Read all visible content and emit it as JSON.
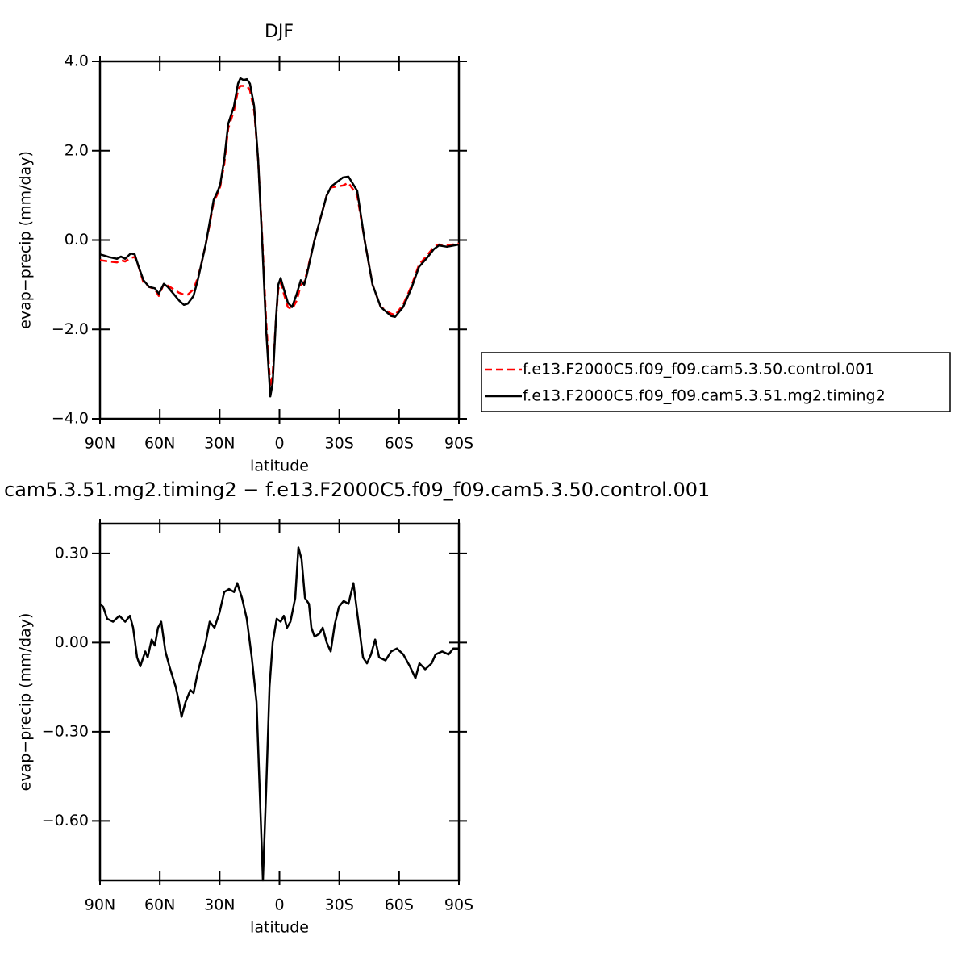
{
  "chart_data": [
    {
      "type": "line",
      "title": "DJF",
      "xlabel": "latitude",
      "ylabel": "evap−precip (mm/day)",
      "xlim": [
        90,
        -90
      ],
      "xticks": [
        {
          "value": 90,
          "label": "90N"
        },
        {
          "value": 60,
          "label": "60N"
        },
        {
          "value": 30,
          "label": "30N"
        },
        0,
        {
          "value": -30,
          "label": "30S"
        },
        {
          "value": -60,
          "label": "60S"
        },
        {
          "value": -90,
          "label": "90S"
        }
      ],
      "ylim": [
        -4,
        4
      ],
      "yticks": [
        {
          "value": 4,
          "label": "4.0"
        },
        {
          "value": 2,
          "label": "2.0"
        },
        {
          "value": 0,
          "label": "0.0"
        },
        {
          "value": -2,
          "label": "−2.0"
        },
        {
          "value": -4,
          "label": "−4.0"
        }
      ],
      "legend": "right",
      "x": [
        90,
        85.5,
        81.5,
        79.5,
        77.4,
        74.6,
        72.6,
        70.6,
        68.2,
        65.3,
        62.5,
        60.5,
        58,
        56,
        53.2,
        50.4,
        47.9,
        45.9,
        43.1,
        41,
        39,
        37,
        35,
        33,
        30.9,
        29.7,
        27.7,
        25.7,
        22.8,
        20.8,
        19.6,
        18,
        16.4,
        14.8,
        12.7,
        10.7,
        8.7,
        6.7,
        4.6,
        3.4,
        1.8,
        0.6,
        -0.6,
        -2.2,
        -4.2,
        -6.3,
        -8.7,
        -10.7,
        -12.4,
        -13.6,
        -17.6,
        -23.7,
        -26,
        -31.8,
        -34.6,
        -39,
        -42.7,
        -46.7,
        -50.8,
        -56,
        -58,
        -62,
        -66,
        -70,
        -74,
        -77.5,
        -80,
        -84,
        -90
      ],
      "series": [
        {
          "name": "f.e13.F2000C5.f09_f09.cam5.3.50.control.001",
          "color": "#ff0000",
          "dash": true,
          "values": [
            -0.45,
            -0.48,
            -0.5,
            -0.45,
            -0.48,
            -0.4,
            -0.38,
            -0.6,
            -0.95,
            -1.05,
            -1.1,
            -1.25,
            -0.98,
            -1.02,
            -1.1,
            -1.18,
            -1.22,
            -1.22,
            -1.1,
            -0.85,
            -0.5,
            -0.1,
            0.35,
            0.85,
            1.05,
            1.2,
            1.7,
            2.5,
            2.9,
            3.35,
            3.45,
            3.45,
            3.45,
            3.35,
            2.9,
            1.8,
            0.1,
            -1.8,
            -3.3,
            -3.0,
            -1.8,
            -1.1,
            -0.95,
            -1.2,
            -1.5,
            -1.55,
            -1.35,
            -1.0,
            -0.95,
            -0.75,
            0.0,
            1.0,
            1.18,
            1.22,
            1.28,
            1.0,
            0.0,
            -1.0,
            -1.5,
            -1.65,
            -1.68,
            -1.45,
            -1.05,
            -0.55,
            -0.35,
            -0.15,
            -0.1,
            -0.12,
            -0.08
          ]
        },
        {
          "name": "f.e13.F2000C5.f09_f09.cam5.3.51.mg2.timing2",
          "color": "#000000",
          "dash": false,
          "values": [
            -0.32,
            -0.38,
            -0.42,
            -0.37,
            -0.42,
            -0.3,
            -0.32,
            -0.6,
            -0.9,
            -1.05,
            -1.08,
            -1.2,
            -0.98,
            -1.05,
            -1.2,
            -1.35,
            -1.45,
            -1.42,
            -1.25,
            -0.9,
            -0.5,
            -0.1,
            0.4,
            0.9,
            1.1,
            1.25,
            1.8,
            2.6,
            3.0,
            3.5,
            3.62,
            3.58,
            3.6,
            3.5,
            3.0,
            1.8,
            0.0,
            -2.0,
            -3.5,
            -3.2,
            -1.8,
            -1.0,
            -0.85,
            -1.1,
            -1.4,
            -1.5,
            -1.2,
            -0.9,
            -1.0,
            -0.8,
            0.0,
            1.0,
            1.2,
            1.4,
            1.42,
            1.1,
            0.0,
            -1.0,
            -1.5,
            -1.7,
            -1.72,
            -1.5,
            -1.1,
            -0.6,
            -0.4,
            -0.2,
            -0.12,
            -0.15,
            -0.1
          ]
        }
      ]
    },
    {
      "type": "line",
      "title": "cam5.3.51.mg2.timing2 − f.e13.F2000C5.f09_f09.cam5.3.50.control.001",
      "xlabel": "latitude",
      "ylabel": "evap−precip (mm/day)",
      "xlim": [
        90,
        -90
      ],
      "xticks": [
        {
          "value": 90,
          "label": "90N"
        },
        {
          "value": 60,
          "label": "60N"
        },
        {
          "value": 30,
          "label": "30N"
        },
        0,
        {
          "value": -30,
          "label": "30S"
        },
        {
          "value": -60,
          "label": "60S"
        },
        {
          "value": -90,
          "label": "90S"
        }
      ],
      "ylim": [
        -0.8,
        0.4
      ],
      "yticks": [
        {
          "value": 0.3,
          "label": "0.30"
        },
        {
          "value": 0,
          "label": "0.00"
        },
        {
          "value": -0.3,
          "label": "−0.30"
        },
        {
          "value": -0.6,
          "label": "−0.60"
        }
      ],
      "x": [
        90,
        88.4,
        86.4,
        83.5,
        80.3,
        77.4,
        75,
        73.4,
        71.4,
        69.8,
        67.3,
        66.1,
        64.1,
        62.5,
        60.9,
        59.3,
        57.2,
        55.2,
        52,
        50.4,
        49.1,
        47.1,
        44.7,
        43.1,
        41,
        39,
        37,
        35,
        32.6,
        30.1,
        27.7,
        25.3,
        22.8,
        21.2,
        18.8,
        16.4,
        13.9,
        11.5,
        9.9,
        8.3,
        6.7,
        5,
        3.4,
        1.4,
        -0.6,
        -2.2,
        -3.8,
        -5.5,
        -7.9,
        -9.5,
        -11.1,
        -12.8,
        -14.8,
        -16,
        -17.6,
        -20,
        -21.7,
        -23.7,
        -25.7,
        -27.7,
        -29.8,
        -32.2,
        -34.6,
        -37.1,
        -39,
        -41.9,
        -43.9,
        -45.9,
        -48,
        -50,
        -53.2,
        -56,
        -58.9,
        -62.1,
        -65.4,
        -68.2,
        -70.2,
        -73.1,
        -76.3,
        -78.3,
        -81.6,
        -84.8,
        -87.2,
        -90
      ],
      "series": [
        {
          "color": "#000000",
          "dash": false,
          "values": [
            0.13,
            0.12,
            0.08,
            0.07,
            0.09,
            0.07,
            0.09,
            0.05,
            -0.05,
            -0.08,
            -0.03,
            -0.05,
            0.01,
            -0.01,
            0.05,
            0.07,
            -0.03,
            -0.08,
            -0.15,
            -0.2,
            -0.25,
            -0.2,
            -0.16,
            -0.17,
            -0.1,
            -0.05,
            0.0,
            0.07,
            0.05,
            0.1,
            0.17,
            0.18,
            0.17,
            0.2,
            0.15,
            0.08,
            -0.05,
            -0.2,
            -0.5,
            -0.8,
            -0.5,
            -0.15,
            0.0,
            0.08,
            0.07,
            0.09,
            0.05,
            0.07,
            0.15,
            0.32,
            0.28,
            0.15,
            0.13,
            0.05,
            0.02,
            0.03,
            0.05,
            0.0,
            -0.03,
            0.06,
            0.12,
            0.14,
            0.13,
            0.2,
            0.1,
            -0.05,
            -0.07,
            -0.04,
            0.01,
            -0.05,
            -0.06,
            -0.03,
            -0.02,
            -0.04,
            -0.08,
            -0.12,
            -0.07,
            -0.09,
            -0.07,
            -0.04,
            -0.03,
            -0.04,
            -0.02,
            -0.02
          ]
        }
      ]
    }
  ]
}
